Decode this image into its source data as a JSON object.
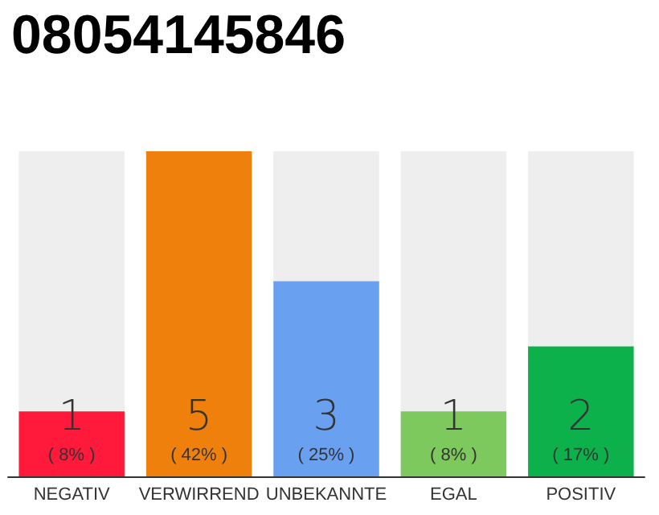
{
  "chart_data": {
    "type": "bar",
    "title": "08054145846",
    "categories": [
      "NEGATIV",
      "VERWIRREND",
      "UNBEKANNTE",
      "EGAL",
      "POSITIV"
    ],
    "values": [
      1,
      5,
      3,
      1,
      2
    ],
    "colors": [
      "#ff1a3c",
      "#f0800c",
      "#6aa0f0",
      "#7dc95e",
      "#0db14b"
    ],
    "ylim": [
      0,
      5
    ],
    "tick_labels": "x",
    "grid": false,
    "data_labels": true,
    "annotations": [
      "( 8% )",
      "( 42% )",
      "( 25% )",
      "( 8% )",
      "( 17% )"
    ]
  }
}
